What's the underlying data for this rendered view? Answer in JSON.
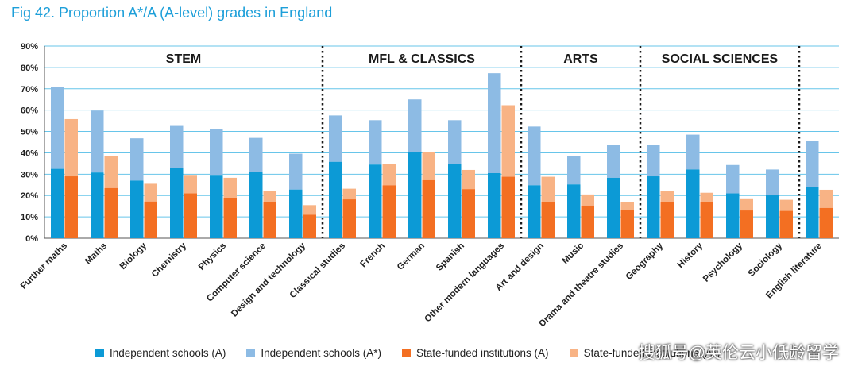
{
  "figure_title": "Fig 42. Proportion A*/A (A-level) grades in England",
  "colors": {
    "independent_a": "#0c9ad6",
    "independent_astar": "#8dbbe4",
    "state_a": "#f36f22",
    "state_astar": "#f8b385",
    "grid": "#67c5ea",
    "divider": "#1a1a1a"
  },
  "chart_data": {
    "type": "bar",
    "stacked": true,
    "grouped": true,
    "ylim": [
      0,
      90
    ],
    "yticks": [
      "0%",
      "10%",
      "20%",
      "30%",
      "40%",
      "50%",
      "60%",
      "70%",
      "80%",
      "90%"
    ],
    "grid": true,
    "legend_position": "bottom",
    "sections": [
      {
        "label": "STEM",
        "start": 0,
        "count": 7
      },
      {
        "label": "MFL & CLASSICS",
        "start": 7,
        "count": 5
      },
      {
        "label": "ARTS",
        "start": 12,
        "count": 3
      },
      {
        "label": "SOCIAL SCIENCES",
        "start": 15,
        "count": 4
      },
      {
        "label": "",
        "start": 19,
        "count": 1
      }
    ],
    "categories": [
      "Further maths",
      "Maths",
      "Biology",
      "Chemistry",
      "Physics",
      "Computer science",
      "Design and technology",
      "Classical studies",
      "French",
      "German",
      "Spanish",
      "Other modern languages",
      "Art and design",
      "Music",
      "Drama and theatre studies",
      "Geography",
      "History",
      "Psychology",
      "Sociology",
      "English literature"
    ],
    "series": [
      {
        "name": "Independent schools (A)",
        "stack": "independent",
        "values": [
          32.5,
          30.8,
          27.0,
          32.8,
          29.3,
          31.2,
          22.8,
          35.8,
          34.5,
          40.2,
          34.8,
          30.5,
          24.8,
          25.2,
          28.3,
          29.0,
          32.2,
          21.0,
          20.3,
          24.0
        ]
      },
      {
        "name": "Independent schools (A*)",
        "stack": "independent",
        "values": [
          38.2,
          29.0,
          19.8,
          19.8,
          21.8,
          15.8,
          16.8,
          21.7,
          20.8,
          24.8,
          20.5,
          46.8,
          27.5,
          13.3,
          15.5,
          14.8,
          16.3,
          13.3,
          11.9,
          21.5
        ]
      },
      {
        "name": "State-funded institutions (A)",
        "stack": "state",
        "values": [
          29.0,
          23.5,
          17.2,
          21.0,
          18.8,
          17.0,
          11.0,
          18.2,
          24.8,
          27.2,
          23.0,
          28.8,
          17.0,
          15.3,
          13.2,
          17.0,
          17.0,
          13.0,
          12.8,
          14.2
        ]
      },
      {
        "name": "State-funded institutions (A*)",
        "stack": "state",
        "values": [
          26.8,
          15.0,
          8.3,
          8.3,
          9.5,
          5.0,
          4.5,
          5.0,
          10.0,
          13.0,
          9.0,
          33.5,
          11.8,
          5.2,
          3.8,
          5.0,
          4.3,
          5.3,
          5.2,
          8.5
        ]
      }
    ]
  },
  "legend": [
    {
      "label": "Independent schools (A)",
      "color": "#0c9ad6"
    },
    {
      "label": "Independent schools (A*)",
      "color": "#8dbbe4"
    },
    {
      "label": "State-funded institutions (A)",
      "color": "#f36f22"
    },
    {
      "label": "State-funded institutions (A*)",
      "color": "#f8b385"
    }
  ],
  "watermark": "搜狐号@英伦云小低龄留学"
}
